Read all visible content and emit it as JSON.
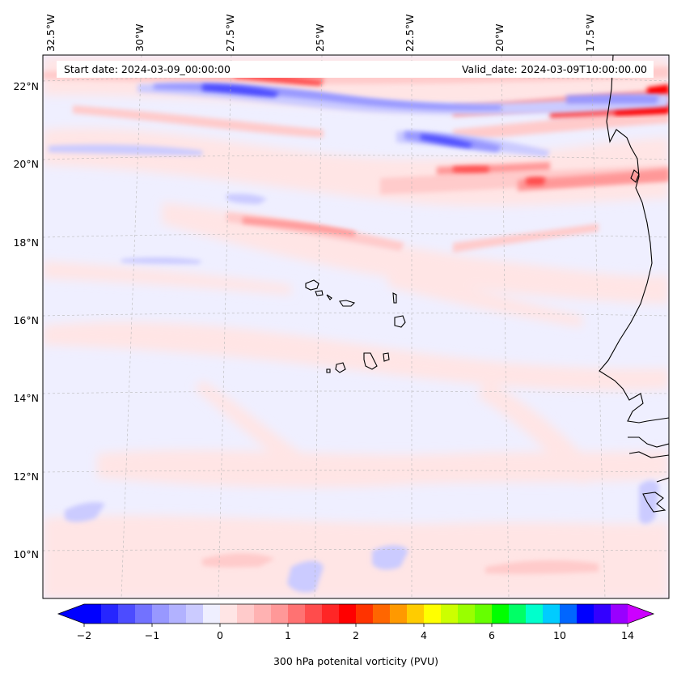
{
  "map": {
    "start_label": "Start date: 2024-03-09_00:00:00",
    "valid_label": "Valid_date: 2024-03-09T10:00:00.00",
    "lon_labels": [
      "32.5°W",
      "30°W",
      "27.5°W",
      "25°W",
      "22.5°W",
      "20°W",
      "17.5°W"
    ],
    "lat_labels": [
      "22°N",
      "20°N",
      "18°N",
      "16°N",
      "14°N",
      "12°N",
      "10°N"
    ]
  },
  "colorbar": {
    "label": "300 hPa potenital vorticity (PVU)",
    "ticks": [
      "−2",
      "−1",
      "0",
      "1",
      "2",
      "4",
      "6",
      "10",
      "14"
    ],
    "colors": [
      "#0000ff",
      "#2626ff",
      "#4c4cff",
      "#7272ff",
      "#9898ff",
      "#b2b2ff",
      "#cbcbff",
      "#efefff",
      "#ffe5e5",
      "#ffcbcb",
      "#ffb2b2",
      "#ff9898",
      "#ff7272",
      "#ff4c4c",
      "#ff2626",
      "#ff0000",
      "#ff3300",
      "#ff6600",
      "#ff9900",
      "#ffcc00",
      "#ffff00",
      "#ccff00",
      "#99ff00",
      "#66ff00",
      "#00ff00",
      "#00ff66",
      "#00ffcc",
      "#00ccff",
      "#0066ff",
      "#0000ff",
      "#3300ff",
      "#9900ff"
    ],
    "under_color": "#0000ff",
    "over_color": "#cc00ff"
  }
}
